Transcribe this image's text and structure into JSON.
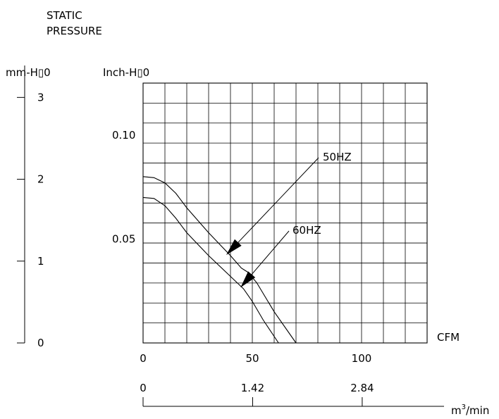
{
  "chart_data": {
    "type": "line",
    "title": "STATIC\nPRESSURE",
    "title_lines": [
      "STATIC",
      "PRESSURE"
    ],
    "y_label": "Inch-H▯0",
    "y2_label": "mm-H▯0",
    "x_label": "CFM",
    "x2_label_main": "m",
    "x2_label_sup": "3",
    "x2_label_rest": "/min",
    "xlim": [
      0,
      130
    ],
    "ylim": [
      0,
      0.125
    ],
    "y2lim": [
      0,
      3.175
    ],
    "x_ticks": [
      "0",
      "50",
      "100"
    ],
    "y_ticks": [
      "0.10",
      "0.05"
    ],
    "y2_ticks": [
      "3",
      "2",
      "1",
      "0"
    ],
    "x2_ticks": [
      "0",
      "1.42",
      "2.84"
    ],
    "grid": true,
    "series": [
      {
        "name": "50HZ",
        "x": [
          0,
          5,
          10,
          15,
          20,
          30,
          40,
          45,
          48,
          52,
          60,
          70
        ],
        "y": [
          0.08,
          0.0795,
          0.077,
          0.072,
          0.065,
          0.053,
          0.042,
          0.036,
          0.034,
          0.029,
          0.015,
          0
        ]
      },
      {
        "name": "60HZ",
        "x": [
          0,
          5,
          10,
          15,
          20,
          30,
          40,
          46,
          50,
          55,
          62
        ],
        "y": [
          0.07,
          0.0695,
          0.066,
          0.06,
          0.053,
          0.042,
          0.032,
          0.026,
          0.02,
          0.011,
          0
        ]
      }
    ]
  }
}
